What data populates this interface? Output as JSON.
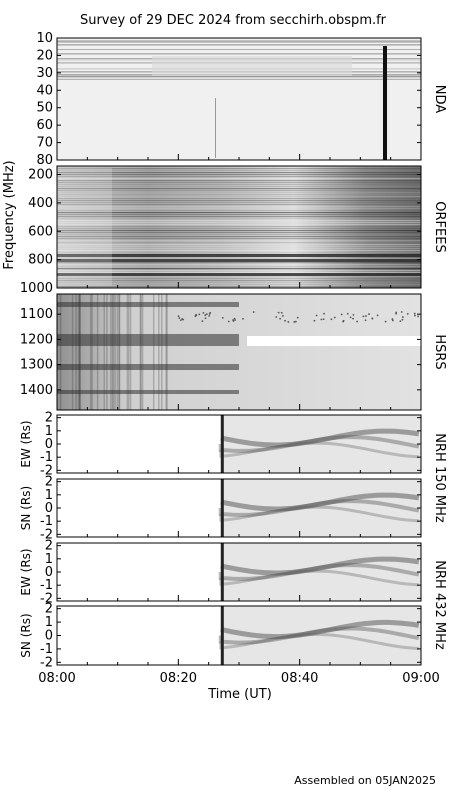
{
  "chart_data": {
    "type": "heatmap",
    "title": "Survey of 29 DEC 2024 from secchirh.obspm.fr",
    "footer": "Assembled on 05JAN2025",
    "xlabel": "Time (UT)",
    "xlim": [
      "08:00",
      "09:00"
    ],
    "xticks": [
      "08:00",
      "08:20",
      "08:40",
      "09:00"
    ],
    "spectral_ylabel": "Frequency (MHz)",
    "colormap": "grayscale",
    "panels": [
      {
        "id": "nda",
        "label": "NDA",
        "unit": "MHz",
        "ylim": [
          10,
          80
        ],
        "ytick_labels": [
          "10",
          "20",
          "30",
          "40",
          "50",
          "60",
          "70",
          "80"
        ]
      },
      {
        "id": "orfees",
        "label": "ORFEES",
        "unit": "MHz",
        "ylim": [
          140,
          1000
        ],
        "ytick_labels": [
          "200",
          "400",
          "600",
          "800",
          "1000"
        ]
      },
      {
        "id": "hsrs",
        "label": "HSRS",
        "unit": "MHz",
        "ylim": [
          1020,
          1480
        ],
        "ytick_labels": [
          "1100",
          "1200",
          "1300",
          "1400"
        ]
      },
      {
        "id": "nrh150ew",
        "ylabel": "EW (Rs)",
        "ylim": [
          -2.2,
          2.2
        ],
        "ytick_labels": [
          "2",
          "1",
          "0",
          "-1",
          "-2"
        ],
        "data_start": "08:27"
      },
      {
        "id": "nrh150sn",
        "ylabel": "SN (Rs)",
        "ylim": [
          -2.2,
          2.2
        ],
        "ytick_labels": [
          "2",
          "1",
          "0",
          "-1",
          "-2"
        ],
        "data_start": "08:27"
      },
      {
        "id": "nrh432ew",
        "ylabel": "EW (Rs)",
        "ylim": [
          -2.2,
          2.2
        ],
        "ytick_labels": [
          "2",
          "1",
          "0",
          "-1",
          "-2"
        ],
        "data_start": "08:27"
      },
      {
        "id": "nrh432sn",
        "ylabel": "SN (Rs)",
        "ylim": [
          -2.2,
          2.2
        ],
        "ytick_labels": [
          "2",
          "1",
          "0",
          "-1",
          "-2"
        ],
        "data_start": "08:27"
      }
    ],
    "nrh_groups": [
      {
        "label": "NRH 150 MHz"
      },
      {
        "label": "NRH 432 MHz"
      }
    ]
  }
}
